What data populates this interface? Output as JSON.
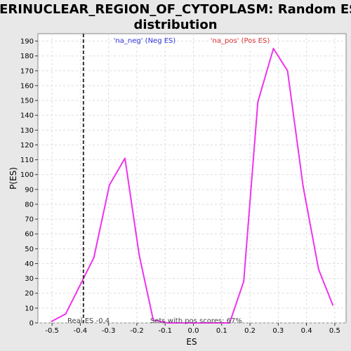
{
  "chart_data": {
    "type": "line",
    "title_line1": "PERINUCLEAR_REGION_OF_CYTOPLASM: Random ES",
    "title_line2": "distribution",
    "xlabel": "ES",
    "ylabel": "P(ES)",
    "xlim": [
      -0.55,
      0.54
    ],
    "ylim": [
      0,
      195
    ],
    "x_ticks": [
      -0.5,
      -0.4,
      -0.3,
      -0.2,
      -0.1,
      0.0,
      0.1,
      0.2,
      0.3,
      0.4,
      0.5
    ],
    "x_tick_labels": [
      "-0.5",
      "-0.4",
      "-0.3",
      "-0.2",
      "-0.1",
      "0.0",
      "0.1",
      "0.2",
      "0.3",
      "0.4",
      "0.5"
    ],
    "y_ticks": [
      0,
      10,
      20,
      30,
      40,
      50,
      60,
      70,
      80,
      90,
      100,
      110,
      120,
      130,
      140,
      150,
      160,
      170,
      180,
      190
    ],
    "grid": true,
    "series": [
      {
        "color": "#ee33ee",
        "x": [
          -0.502,
          -0.452,
          -0.352,
          -0.297,
          -0.242,
          -0.192,
          -0.142,
          -0.092,
          -0.042,
          0.008,
          0.058,
          0.128,
          0.178,
          0.228,
          0.283,
          0.333,
          0.388,
          0.443,
          0.493
        ],
        "y": [
          1,
          6,
          44,
          93,
          111,
          46,
          2,
          0,
          0,
          0,
          0,
          0,
          28,
          149,
          185,
          170,
          92,
          36,
          12
        ]
      }
    ],
    "real_es": -0.389,
    "annotations": {
      "neg_label": "'na_neg' (Neg ES)",
      "pos_label": "'na_pos' (Pos ES)",
      "real_es_label": "Real ES -0.4",
      "sets_label": "Sets with pos scores: 67%"
    },
    "colors": {
      "neg": "#3333dd",
      "pos": "#dd3333",
      "line": "#ee33ee",
      "background": "#e8e8e8",
      "plot_bg": "#ffffff"
    }
  }
}
